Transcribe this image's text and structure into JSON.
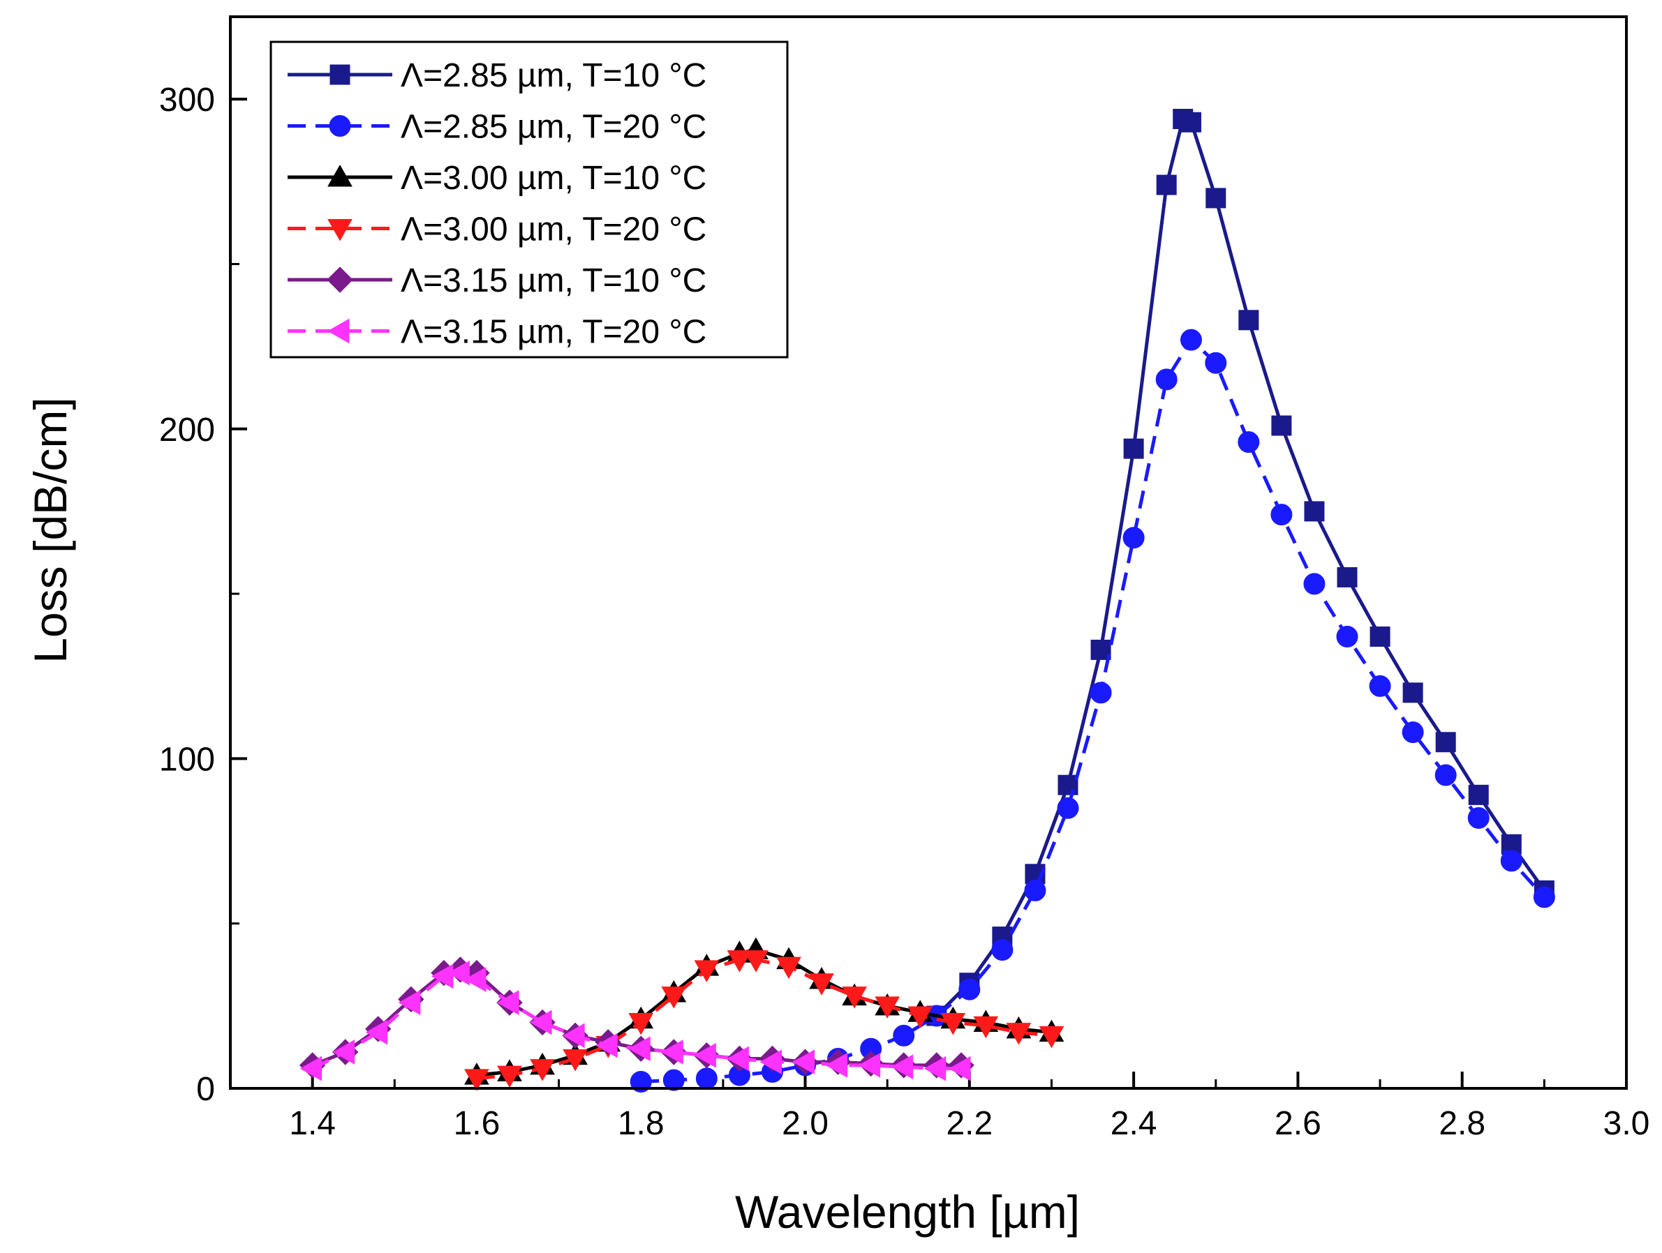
{
  "chart_data": {
    "type": "line",
    "title": "",
    "xlabel": "Wavelength [µm]",
    "ylabel": "Loss [dB/cm]",
    "xlim": [
      1.3,
      3.0
    ],
    "ylim": [
      0,
      325
    ],
    "xticks": [
      1.4,
      1.6,
      1.8,
      2.0,
      2.2,
      2.4,
      2.6,
      2.8,
      3.0
    ],
    "xtick_labels": [
      "1.4",
      "1.6",
      "1.8",
      "2.0",
      "2.2",
      "2.4",
      "2.6",
      "2.8",
      "3.0"
    ],
    "yticks": [
      0,
      100,
      200,
      300
    ],
    "ytick_labels": [
      "0",
      "100",
      "200",
      "300"
    ],
    "grid": false,
    "legend_position": "top-left",
    "series": [
      {
        "name": "Λ=2.85 µm, T=10 °C",
        "color": "#1a1a8c",
        "dash": "solid",
        "marker": "square",
        "x": [
          2.16,
          2.2,
          2.24,
          2.28,
          2.32,
          2.36,
          2.4,
          2.44,
          2.46,
          2.47,
          2.5,
          2.54,
          2.58,
          2.62,
          2.66,
          2.7,
          2.74,
          2.78,
          2.82,
          2.86,
          2.9
        ],
        "y": [
          22,
          32,
          46,
          65,
          92,
          133,
          194,
          274,
          294,
          293,
          270,
          233,
          201,
          175,
          155,
          137,
          120,
          105,
          89,
          74,
          60
        ]
      },
      {
        "name": "Λ=2.85 µm, T=20 °C",
        "color": "#1a1aff",
        "dash": "dashed",
        "marker": "circle",
        "x": [
          1.8,
          1.84,
          1.88,
          1.92,
          1.96,
          2.0,
          2.04,
          2.08,
          2.12,
          2.16,
          2.2,
          2.24,
          2.28,
          2.32,
          2.36,
          2.4,
          2.44,
          2.47,
          2.5,
          2.54,
          2.58,
          2.62,
          2.66,
          2.7,
          2.74,
          2.78,
          2.82,
          2.86,
          2.9
        ],
        "y": [
          2,
          2.5,
          3,
          4,
          5,
          7,
          9,
          12,
          16,
          22,
          30,
          42,
          60,
          85,
          120,
          167,
          215,
          227,
          220,
          196,
          174,
          153,
          137,
          122,
          108,
          95,
          82,
          69,
          58
        ]
      },
      {
        "name": "Λ=3.00 µm, T=10 °C",
        "color": "#000000",
        "dash": "solid",
        "marker": "triangle-up",
        "x": [
          1.6,
          1.64,
          1.68,
          1.72,
          1.76,
          1.8,
          1.84,
          1.88,
          1.92,
          1.94,
          1.98,
          2.02,
          2.06,
          2.1,
          2.14,
          2.18,
          2.22,
          2.26,
          2.3
        ],
        "y": [
          4,
          5,
          7,
          10,
          14,
          21,
          29,
          37,
          41,
          42,
          39,
          33,
          28,
          25,
          23,
          21,
          20,
          18,
          17
        ]
      },
      {
        "name": "Λ=3.00 µm, T=20 °C",
        "color": "#ff1a1a",
        "dash": "dashed",
        "marker": "triangle-down",
        "x": [
          1.6,
          1.64,
          1.68,
          1.72,
          1.76,
          1.8,
          1.84,
          1.88,
          1.92,
          1.94,
          1.98,
          2.02,
          2.06,
          2.1,
          2.14,
          2.18,
          2.22,
          2.26,
          2.3
        ],
        "y": [
          3,
          4,
          6,
          9,
          13,
          20,
          28,
          36,
          39,
          39,
          37,
          32,
          28,
          25,
          22,
          20,
          19,
          17,
          16
        ]
      },
      {
        "name": "Λ=3.15 µm, T=10 °C",
        "color": "#7a1a8c",
        "dash": "solid",
        "marker": "diamond",
        "x": [
          1.4,
          1.44,
          1.48,
          1.52,
          1.56,
          1.58,
          1.6,
          1.64,
          1.68,
          1.72,
          1.76,
          1.8,
          1.84,
          1.88,
          1.92,
          1.96,
          2.0,
          2.04,
          2.08,
          2.12,
          2.16,
          2.19
        ],
        "y": [
          7,
          11,
          18,
          27,
          35,
          36,
          35,
          26,
          20,
          16,
          14,
          12,
          11,
          10,
          9,
          9,
          8,
          8,
          7.5,
          7,
          7,
          7
        ]
      },
      {
        "name": "Λ=3.15 µm, T=20 °C",
        "color": "#ff33ff",
        "dash": "dashed",
        "marker": "triangle-left",
        "x": [
          1.4,
          1.44,
          1.48,
          1.52,
          1.56,
          1.58,
          1.6,
          1.64,
          1.68,
          1.72,
          1.76,
          1.8,
          1.84,
          1.88,
          1.92,
          1.96,
          2.0,
          2.04,
          2.08,
          2.12,
          2.16,
          2.19
        ],
        "y": [
          6,
          11,
          17,
          26,
          34,
          35,
          33,
          26,
          20,
          16,
          13,
          12,
          11,
          10,
          9,
          8,
          8,
          7,
          7,
          6.5,
          6,
          6
        ]
      }
    ]
  }
}
